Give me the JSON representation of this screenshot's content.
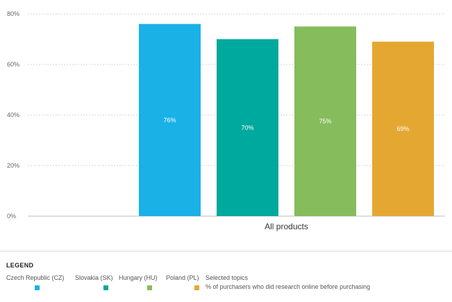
{
  "chart_data": {
    "type": "bar",
    "categories": [
      "All products"
    ],
    "series": [
      {
        "name": "Czech Republic (CZ)",
        "values": [
          76
        ],
        "color": "#1AB1E6",
        "label": "76%"
      },
      {
        "name": "Slovakia (SK)",
        "values": [
          70
        ],
        "color": "#00A99D",
        "label": "70%"
      },
      {
        "name": "Hungary (HU)",
        "values": [
          75
        ],
        "color": "#86BC5B",
        "label": "75%"
      },
      {
        "name": "Poland (PL)",
        "values": [
          69
        ],
        "color": "#E4A832",
        "label": "69%"
      }
    ],
    "y_ticks": [
      "0%",
      "20%",
      "40%",
      "60%",
      "80%"
    ],
    "ylim": [
      0,
      80
    ],
    "grid": true,
    "legend_position": "bottom"
  },
  "legend": {
    "title": "LEGEND",
    "items": [
      {
        "label": "Czech Republic (CZ)",
        "color": "#1AB1E6"
      },
      {
        "label": "Slovakia (SK)",
        "color": "#00A99D"
      },
      {
        "label": "Hungary (HU)",
        "color": "#86BC5B"
      },
      {
        "label": "Poland (PL)",
        "color": "#E4A832"
      }
    ],
    "topics_title": "Selected topics",
    "topics_sub": "% of purchasers who did research online before purchasing"
  }
}
